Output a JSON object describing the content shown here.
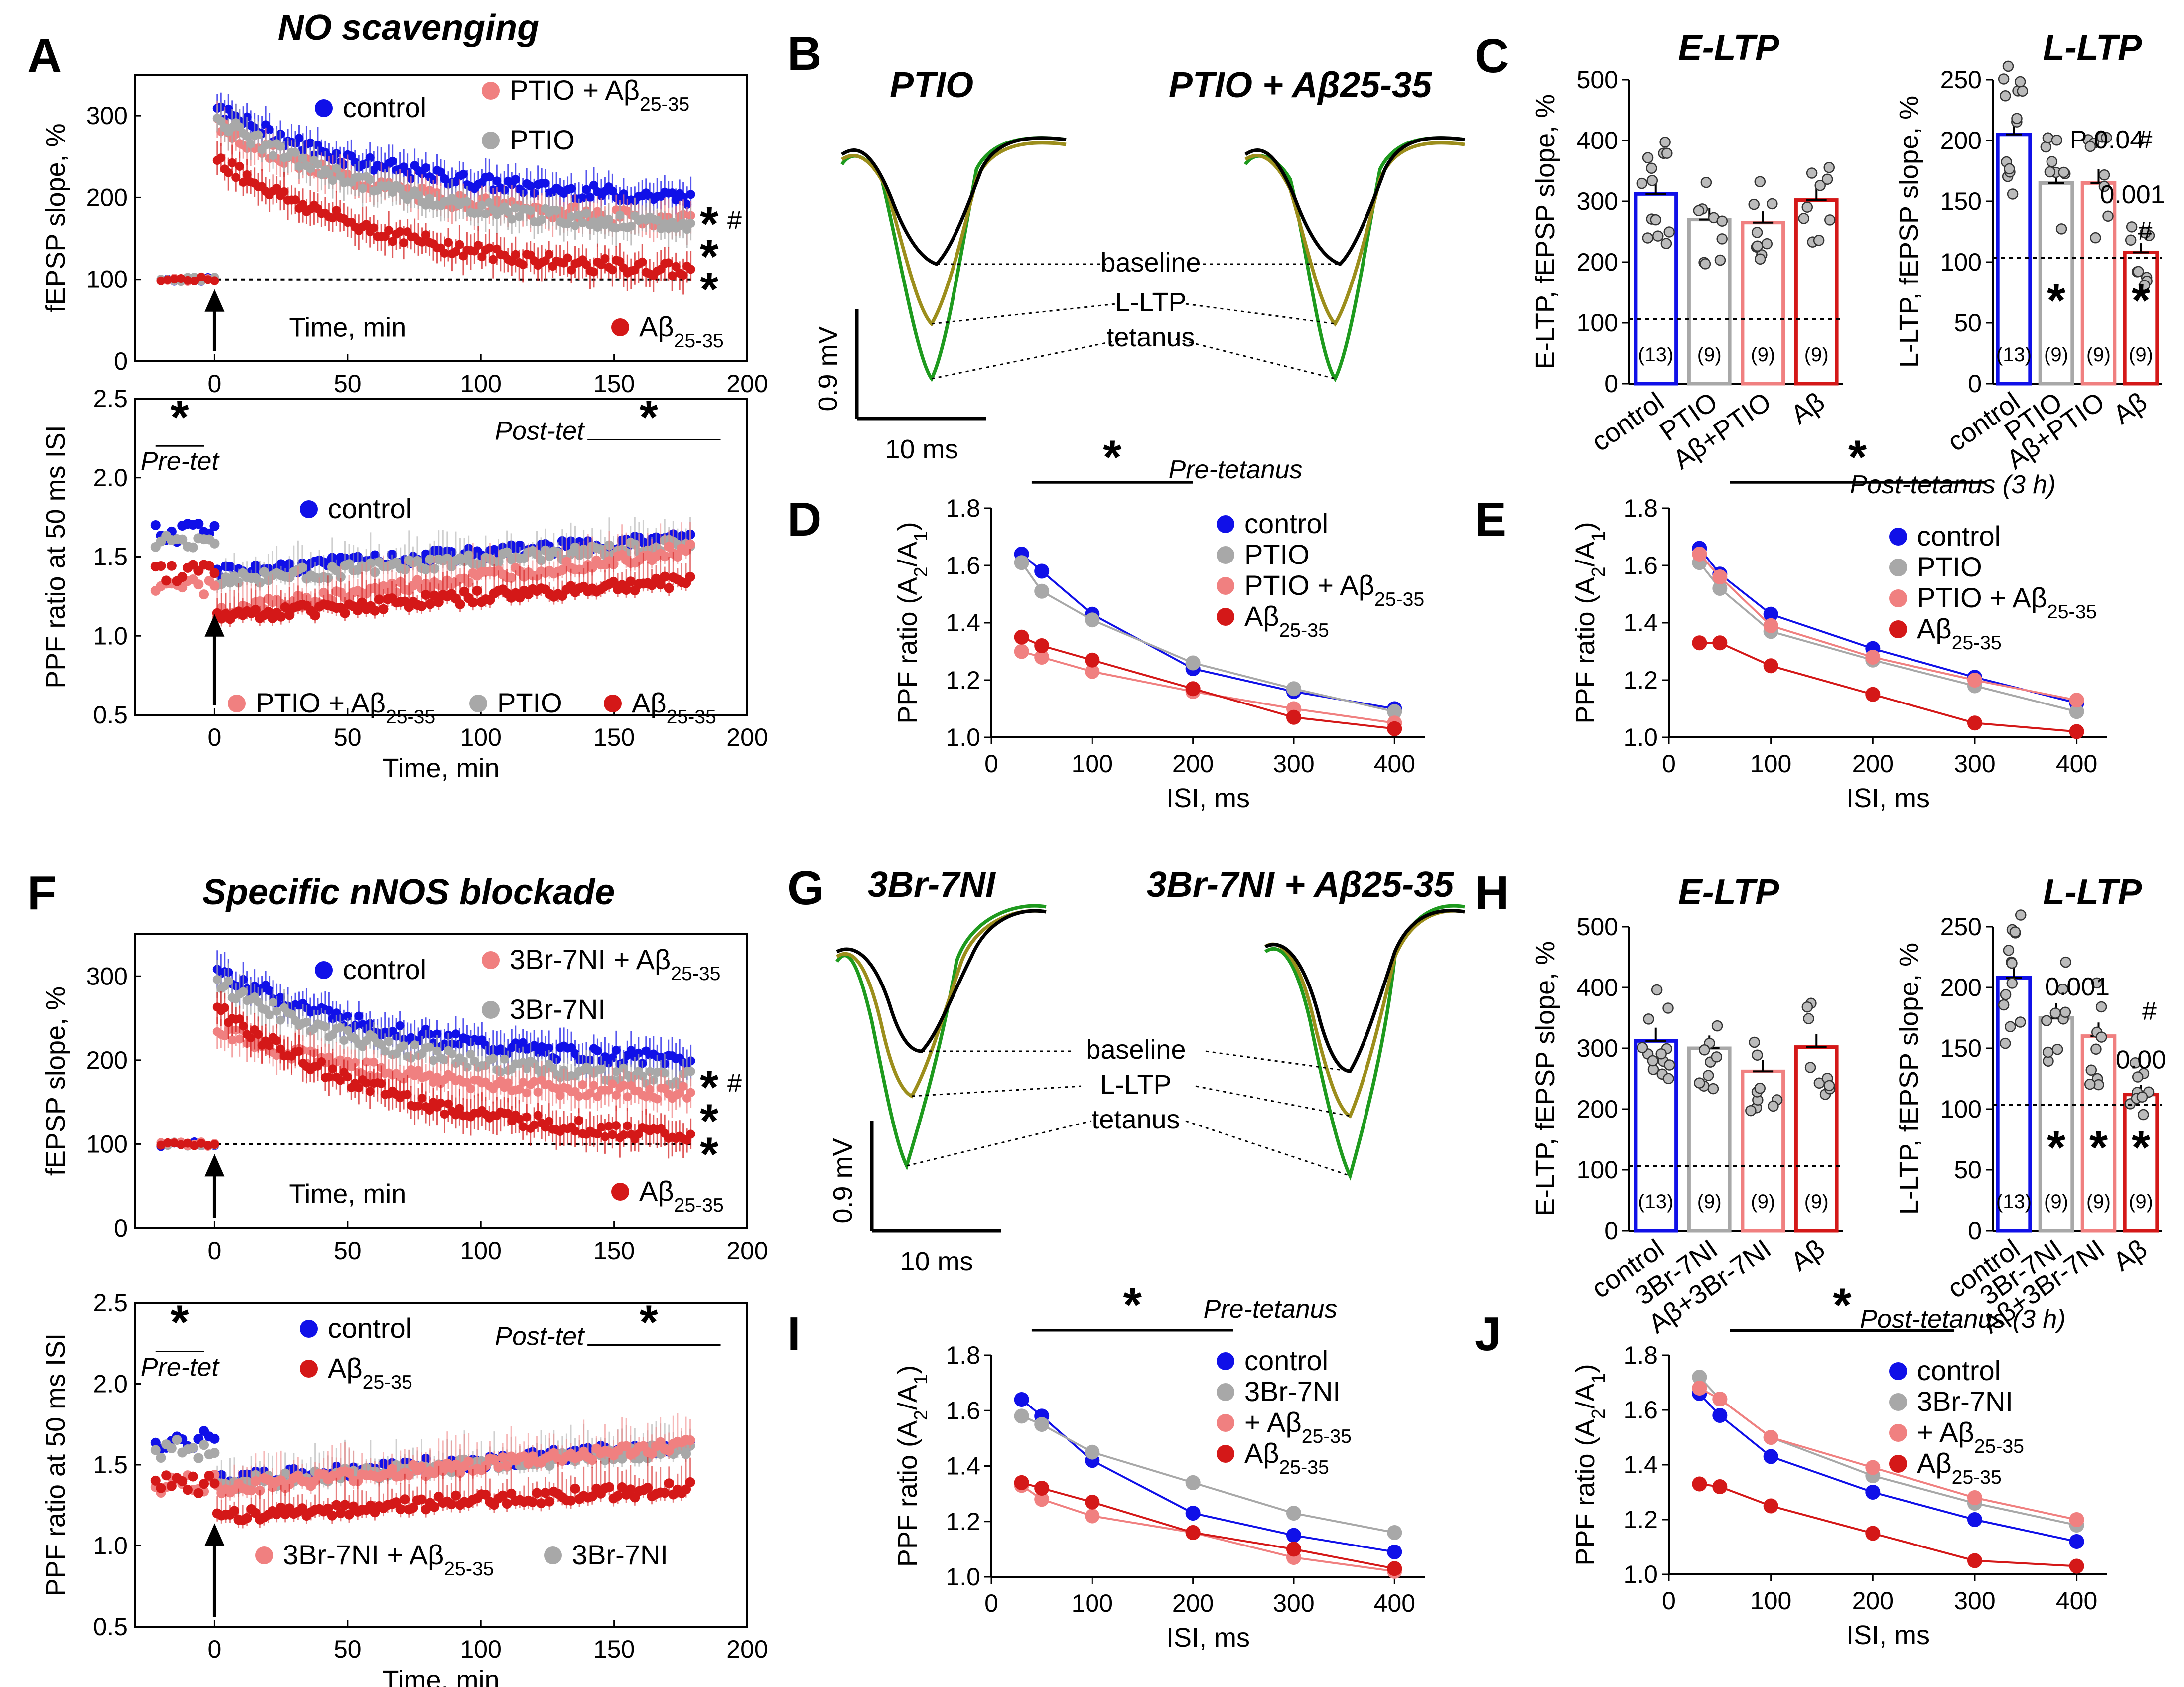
{
  "colors": {
    "control": "#1010e8",
    "ptio": "#a8a8a8",
    "ptio_ab": "#f08080",
    "ab": "#d41818",
    "trace_base": "#000000",
    "trace_ltp": "#9c8e1c",
    "trace_tet": "#1e9a1e"
  },
  "panels": {
    "A": "A",
    "B": "B",
    "C": "C",
    "D": "D",
    "E": "E",
    "F": "F",
    "G": "G",
    "H": "H",
    "I": "I",
    "J": "J"
  },
  "titles": {
    "A": "NO scavenging",
    "F": "Specific nNOS blockade",
    "B1": "PTIO",
    "B2": "PTIO + Aβ25-35",
    "G1": "3Br-7NI",
    "G2": "3Br-7NI + Aβ25-35",
    "C1": "E-LTP",
    "C2": "L-LTP",
    "H1": "E-LTP",
    "H2": "L-LTP",
    "D": "Pre-tetanus",
    "E": "Post-tetanus (3 h)",
    "I": "Pre-tetanus",
    "J": "Post-tetanus (3 h)"
  },
  "axes": {
    "fepsp_y": "fEPSP slope, %",
    "ppf50_y": "PPF ratio at 50 ms ISI",
    "time_x": "Time, min",
    "ppf_y": "PPF ratio (A2/A1)",
    "isi_x": "ISI, ms",
    "eltp_y": "E-LTP, fEPSP slope, %",
    "lltp_y": "L-LTP, fEPSP slope, %"
  },
  "labels": {
    "pre_tet": "Pre-tet",
    "post_tet": "Post-tet",
    "star": "*",
    "hash": "#",
    "baseline": "baseline",
    "lltp": "L-LTP",
    "tetanus": "tetanus",
    "scale_mv": "0.9 mV",
    "scale_ms": "10 ms",
    "p004": "P 0.04",
    "p001a": "0.001",
    "p001b": "0.00",
    "p001c": "0.001",
    "p001d": "0.00",
    "n13": "(13)",
    "n9": "(9)"
  },
  "legend": {
    "control": "control",
    "ptio": "PTIO",
    "ptio_ab": "PTIO + Aβ25-35",
    "ab": "Aβ25-35",
    "br": "3Br-7NI",
    "br_ab": "3Br-7NI + Aβ25-35",
    "plus_ab": "+ Aβ25-35"
  },
  "bar_cats": {
    "C": [
      "control",
      "PTIO",
      "Aβ+PTIO",
      "Aβ"
    ],
    "H": [
      "control",
      "3Br-7NI",
      "Aβ+3Br-7NI",
      "Aβ"
    ]
  },
  "chart_data": [
    {
      "id": "A_top",
      "type": "scatter",
      "title": "NO scavenging",
      "xlabel": "Time, min",
      "ylabel": "fEPSP slope, %",
      "xlim": [
        -30,
        200
      ],
      "ylim": [
        0,
        350
      ],
      "series": [
        {
          "name": "control",
          "start": 310,
          "end": 200
        },
        {
          "name": "PTIO + Aβ25-35",
          "start": 290,
          "end": 172
        },
        {
          "name": "PTIO",
          "start": 300,
          "end": 165
        },
        {
          "name": "Aβ25-35",
          "start": 250,
          "end": 110
        }
      ],
      "baseline": 100
    },
    {
      "id": "A_bot",
      "type": "scatter",
      "xlabel": "Time, min",
      "ylabel": "PPF ratio at 50 ms ISI",
      "xlim": [
        -30,
        200
      ],
      "ylim": [
        0.5,
        2.5
      ],
      "series": [
        {
          "name": "control",
          "pre": 1.65,
          "post_start": 1.4,
          "post_end": 1.62
        },
        {
          "name": "PTIO",
          "pre": 1.6,
          "post_start": 1.35,
          "post_end": 1.58
        },
        {
          "name": "PTIO + Aβ25-35",
          "pre": 1.3,
          "post_start": 1.15,
          "post_end": 1.55
        },
        {
          "name": "Aβ25-35",
          "pre": 1.4,
          "post_start": 1.12,
          "post_end": 1.35
        }
      ]
    },
    {
      "id": "C_E",
      "type": "bar",
      "title": "E-LTP",
      "categories": [
        "control",
        "PTIO",
        "Aβ+PTIO",
        "Aβ"
      ],
      "values": [
        312,
        270,
        265,
        302
      ],
      "ylim": [
        0,
        500
      ],
      "n": [
        "(13)",
        "(9)",
        "(9)",
        "(9)"
      ]
    },
    {
      "id": "C_L",
      "type": "bar",
      "title": "L-LTP",
      "categories": [
        "control",
        "PTIO",
        "Aβ+PTIO",
        "Aβ"
      ],
      "values": [
        205,
        165,
        165,
        108
      ],
      "ylim": [
        0,
        250
      ],
      "n": [
        "(13)",
        "(9)",
        "(9)",
        "(9)"
      ]
    },
    {
      "id": "D",
      "type": "line",
      "title": "Pre-tetanus",
      "x": [
        30,
        50,
        100,
        200,
        300,
        400
      ],
      "xlim": [
        0,
        430
      ],
      "ylim": [
        1.0,
        1.8
      ],
      "series": [
        {
          "name": "control",
          "values": [
            1.64,
            1.58,
            1.43,
            1.24,
            1.16,
            1.1
          ]
        },
        {
          "name": "PTIO",
          "values": [
            1.61,
            1.51,
            1.41,
            1.26,
            1.17,
            1.09
          ]
        },
        {
          "name": "PTIO + Aβ25-35",
          "values": [
            1.3,
            1.28,
            1.23,
            1.16,
            1.1,
            1.05
          ]
        },
        {
          "name": "Aβ25-35",
          "values": [
            1.35,
            1.32,
            1.27,
            1.17,
            1.07,
            1.03
          ]
        }
      ]
    },
    {
      "id": "E",
      "type": "line",
      "title": "Post-tetanus (3 h)",
      "x": [
        30,
        50,
        100,
        200,
        300,
        400
      ],
      "xlim": [
        0,
        430
      ],
      "ylim": [
        1.0,
        1.8
      ],
      "series": [
        {
          "name": "control",
          "values": [
            1.66,
            1.57,
            1.43,
            1.31,
            1.21,
            1.12
          ]
        },
        {
          "name": "PTIO",
          "values": [
            1.61,
            1.52,
            1.37,
            1.27,
            1.18,
            1.09
          ]
        },
        {
          "name": "PTIO + Aβ25-35",
          "values": [
            1.64,
            1.56,
            1.39,
            1.28,
            1.2,
            1.13
          ]
        },
        {
          "name": "Aβ25-35",
          "values": [
            1.33,
            1.33,
            1.25,
            1.15,
            1.05,
            1.02
          ]
        }
      ]
    },
    {
      "id": "F_top",
      "type": "scatter",
      "title": "Specific nNOS blockade",
      "xlabel": "Time, min",
      "ylabel": "fEPSP slope, %",
      "xlim": [
        -30,
        200
      ],
      "ylim": [
        0,
        350
      ],
      "series": [
        {
          "name": "control",
          "start": 310,
          "end": 200
        },
        {
          "name": "3Br-7NI",
          "start": 295,
          "end": 178
        },
        {
          "name": "3Br-7NI + Aβ25-35",
          "start": 240,
          "end": 160
        },
        {
          "name": "Aβ25-35",
          "start": 265,
          "end": 110
        }
      ],
      "baseline": 100
    },
    {
      "id": "F_bot",
      "type": "scatter",
      "xlabel": "Time, min",
      "ylabel": "PPF ratio at 50 ms ISI",
      "xlim": [
        -30,
        200
      ],
      "ylim": [
        0.5,
        2.5
      ],
      "series": [
        {
          "name": "control",
          "pre": 1.65,
          "post_start": 1.4,
          "post_end": 1.62
        },
        {
          "name": "3Br-7NI",
          "pre": 1.6,
          "post_start": 1.38,
          "post_end": 1.6
        },
        {
          "name": "3Br-7NI + Aβ25-35",
          "pre": 1.38,
          "post_start": 1.35,
          "post_end": 1.62
        },
        {
          "name": "Aβ25-35",
          "pre": 1.38,
          "post_start": 1.18,
          "post_end": 1.36
        }
      ]
    },
    {
      "id": "H_E",
      "type": "bar",
      "title": "E-LTP",
      "categories": [
        "control",
        "3Br-7NI",
        "Aβ+3Br-7NI",
        "Aβ"
      ],
      "values": [
        312,
        300,
        262,
        302
      ],
      "ylim": [
        0,
        500
      ],
      "n": [
        "(13)",
        "(9)",
        "(9)",
        "(9)"
      ]
    },
    {
      "id": "H_L",
      "type": "bar",
      "title": "L-LTP",
      "categories": [
        "control",
        "3Br-7NI",
        "Aβ+3Br-7NI",
        "Aβ"
      ],
      "values": [
        208,
        175,
        160,
        112
      ],
      "ylim": [
        0,
        250
      ],
      "n": [
        "(13)",
        "(9)",
        "(9)",
        "(9)"
      ]
    },
    {
      "id": "I",
      "type": "line",
      "title": "Pre-tetanus",
      "x": [
        30,
        50,
        100,
        200,
        300,
        400
      ],
      "xlim": [
        0,
        430
      ],
      "ylim": [
        1.0,
        1.8
      ],
      "series": [
        {
          "name": "control",
          "values": [
            1.64,
            1.58,
            1.42,
            1.23,
            1.15,
            1.09
          ]
        },
        {
          "name": "3Br-7NI",
          "values": [
            1.58,
            1.55,
            1.45,
            1.34,
            1.23,
            1.16
          ]
        },
        {
          "name": "+ Aβ25-35",
          "values": [
            1.33,
            1.28,
            1.22,
            1.16,
            1.07,
            1.02
          ]
        },
        {
          "name": "Aβ25-35",
          "values": [
            1.34,
            1.32,
            1.27,
            1.16,
            1.1,
            1.03
          ]
        }
      ]
    },
    {
      "id": "J",
      "type": "line",
      "title": "Post-tetanus (3 h)",
      "x": [
        30,
        50,
        100,
        200,
        300,
        400
      ],
      "xlim": [
        0,
        430
      ],
      "ylim": [
        1.0,
        1.8
      ],
      "series": [
        {
          "name": "control",
          "values": [
            1.66,
            1.58,
            1.43,
            1.3,
            1.2,
            1.12
          ]
        },
        {
          "name": "3Br-7NI",
          "values": [
            1.72,
            1.64,
            1.5,
            1.36,
            1.26,
            1.18
          ]
        },
        {
          "name": "+ Aβ25-35",
          "values": [
            1.68,
            1.64,
            1.5,
            1.39,
            1.28,
            1.2
          ]
        },
        {
          "name": "Aβ25-35",
          "values": [
            1.33,
            1.32,
            1.25,
            1.15,
            1.05,
            1.03
          ]
        }
      ]
    }
  ]
}
